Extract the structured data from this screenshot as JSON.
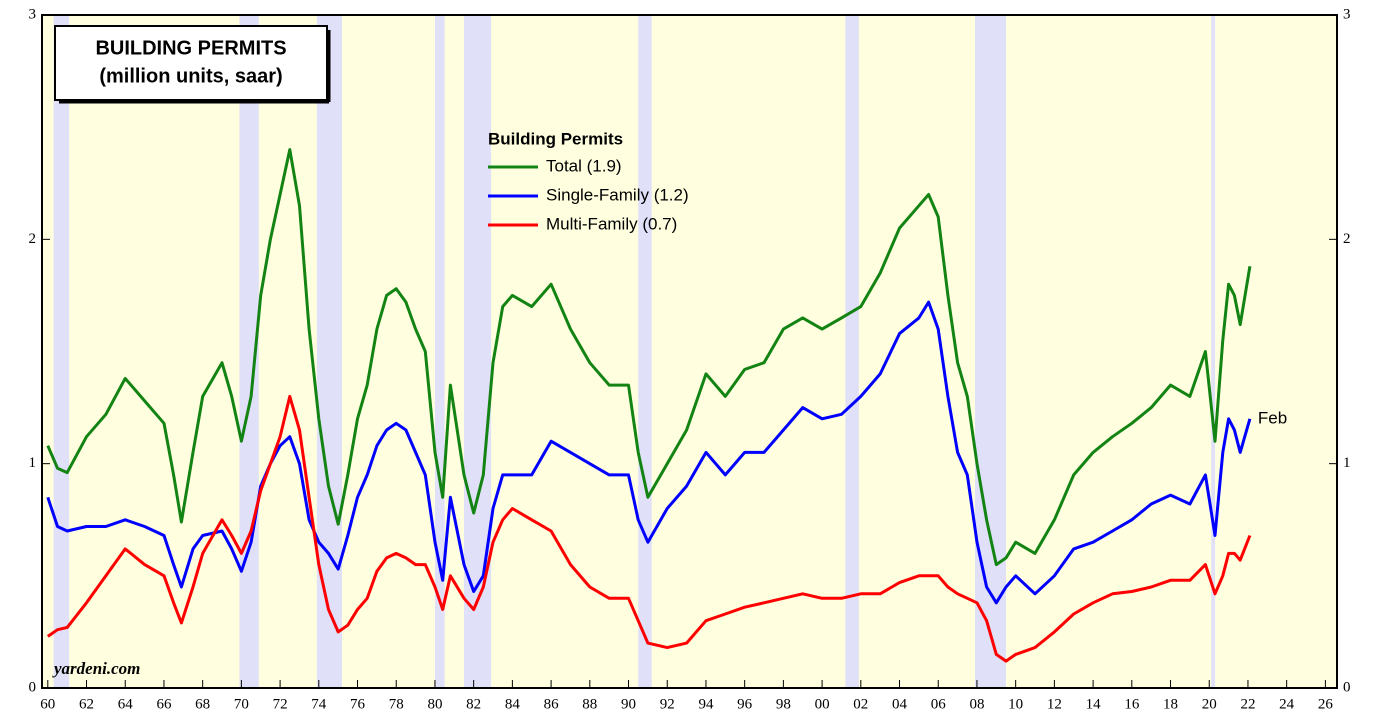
{
  "chart_data": {
    "type": "line",
    "title": "BUILDING PERMITS",
    "subtitle": "(million units, saar)",
    "legend_title": "Building Permits",
    "source": "yardeni.com",
    "end_label": "Feb",
    "x": [
      1960,
      1960.5,
      1961,
      1962,
      1963,
      1964,
      1965,
      1966,
      1966.5,
      1966.9,
      1967.5,
      1968,
      1969,
      1969.5,
      1970,
      1970.5,
      1971,
      1971.5,
      1972,
      1972.5,
      1973,
      1973.5,
      1974,
      1974.5,
      1975,
      1975.5,
      1976,
      1976.5,
      1977,
      1977.5,
      1978,
      1978.5,
      1979,
      1979.5,
      1980,
      1980.4,
      1980.8,
      1981.5,
      1982,
      1982.5,
      1983,
      1983.5,
      1984,
      1985,
      1986,
      1987,
      1988,
      1989,
      1990,
      1990.5,
      1991,
      1992,
      1993,
      1994,
      1995,
      1996,
      1997,
      1998,
      1999,
      2000,
      2001,
      2002,
      2003,
      2004,
      2005,
      2005.5,
      2006,
      2006.5,
      2007,
      2007.5,
      2008,
      2008.5,
      2009,
      2009.5,
      2010,
      2011,
      2012,
      2013,
      2014,
      2015,
      2016,
      2017,
      2018,
      2019,
      2019.8,
      2020.3,
      2020.7,
      2021,
      2021.3,
      2021.6,
      2022.1
    ],
    "series": [
      {
        "name": "Total (1.9)",
        "color": "#138413",
        "values": [
          1.08,
          0.98,
          0.96,
          1.12,
          1.22,
          1.38,
          1.28,
          1.18,
          0.95,
          0.74,
          1.05,
          1.3,
          1.45,
          1.3,
          1.1,
          1.3,
          1.75,
          2.0,
          2.2,
          2.4,
          2.15,
          1.6,
          1.2,
          0.9,
          0.73,
          0.95,
          1.2,
          1.35,
          1.6,
          1.75,
          1.78,
          1.72,
          1.6,
          1.5,
          1.05,
          0.85,
          1.35,
          0.95,
          0.78,
          0.95,
          1.45,
          1.7,
          1.75,
          1.7,
          1.8,
          1.6,
          1.45,
          1.35,
          1.35,
          1.05,
          0.85,
          1.0,
          1.15,
          1.4,
          1.3,
          1.42,
          1.45,
          1.6,
          1.65,
          1.6,
          1.65,
          1.7,
          1.85,
          2.05,
          2.15,
          2.2,
          2.1,
          1.75,
          1.45,
          1.3,
          1.0,
          0.75,
          0.55,
          0.58,
          0.65,
          0.6,
          0.75,
          0.95,
          1.05,
          1.12,
          1.18,
          1.25,
          1.35,
          1.3,
          1.5,
          1.1,
          1.55,
          1.8,
          1.75,
          1.62,
          1.88
        ]
      },
      {
        "name": "Single-Family (1.2)",
        "color": "#0000ff",
        "values": [
          0.85,
          0.72,
          0.7,
          0.72,
          0.72,
          0.75,
          0.72,
          0.68,
          0.55,
          0.45,
          0.62,
          0.68,
          0.7,
          0.62,
          0.52,
          0.65,
          0.9,
          1.0,
          1.08,
          1.12,
          1.0,
          0.75,
          0.65,
          0.6,
          0.53,
          0.68,
          0.85,
          0.95,
          1.08,
          1.15,
          1.18,
          1.15,
          1.05,
          0.95,
          0.65,
          0.48,
          0.85,
          0.55,
          0.43,
          0.5,
          0.8,
          0.95,
          0.95,
          0.95,
          1.1,
          1.05,
          1.0,
          0.95,
          0.95,
          0.75,
          0.65,
          0.8,
          0.9,
          1.05,
          0.95,
          1.05,
          1.05,
          1.15,
          1.25,
          1.2,
          1.22,
          1.3,
          1.4,
          1.58,
          1.65,
          1.72,
          1.6,
          1.3,
          1.05,
          0.95,
          0.65,
          0.45,
          0.38,
          0.45,
          0.5,
          0.42,
          0.5,
          0.62,
          0.65,
          0.7,
          0.75,
          0.82,
          0.86,
          0.82,
          0.95,
          0.68,
          1.05,
          1.2,
          1.15,
          1.05,
          1.2
        ]
      },
      {
        "name": "Multi-Family (0.7)",
        "color": "#ff0000",
        "values": [
          0.23,
          0.26,
          0.27,
          0.38,
          0.5,
          0.62,
          0.55,
          0.5,
          0.38,
          0.29,
          0.45,
          0.6,
          0.75,
          0.68,
          0.6,
          0.7,
          0.88,
          1.0,
          1.12,
          1.3,
          1.15,
          0.85,
          0.55,
          0.35,
          0.25,
          0.28,
          0.35,
          0.4,
          0.52,
          0.58,
          0.6,
          0.58,
          0.55,
          0.55,
          0.45,
          0.35,
          0.5,
          0.4,
          0.35,
          0.45,
          0.65,
          0.75,
          0.8,
          0.75,
          0.7,
          0.55,
          0.45,
          0.4,
          0.4,
          0.3,
          0.2,
          0.18,
          0.2,
          0.3,
          0.33,
          0.36,
          0.38,
          0.4,
          0.42,
          0.4,
          0.4,
          0.42,
          0.42,
          0.47,
          0.5,
          0.5,
          0.5,
          0.45,
          0.42,
          0.4,
          0.38,
          0.3,
          0.15,
          0.12,
          0.15,
          0.18,
          0.25,
          0.33,
          0.38,
          0.42,
          0.43,
          0.45,
          0.48,
          0.48,
          0.55,
          0.42,
          0.5,
          0.6,
          0.6,
          0.57,
          0.68
        ]
      }
    ],
    "recessions": [
      [
        1960.3,
        1961.1
      ],
      [
        1969.9,
        1970.9
      ],
      [
        1973.9,
        1975.2
      ],
      [
        1980.0,
        1980.5
      ],
      [
        1981.5,
        1982.9
      ],
      [
        1990.5,
        1991.2
      ],
      [
        2001.2,
        2001.9
      ],
      [
        2007.9,
        2009.5
      ],
      [
        2020.1,
        2020.3
      ]
    ],
    "xlim": [
      1959.7,
      2026.6
    ],
    "ylim": [
      0,
      3
    ],
    "yticks": [
      0,
      1,
      2,
      3
    ],
    "xticks": [
      {
        "value": 1960,
        "label": "60"
      },
      {
        "value": 1962,
        "label": "62"
      },
      {
        "value": 1964,
        "label": "64"
      },
      {
        "value": 1966,
        "label": "66"
      },
      {
        "value": 1968,
        "label": "68"
      },
      {
        "value": 1970,
        "label": "70"
      },
      {
        "value": 1972,
        "label": "72"
      },
      {
        "value": 1974,
        "label": "74"
      },
      {
        "value": 1976,
        "label": "76"
      },
      {
        "value": 1978,
        "label": "78"
      },
      {
        "value": 1980,
        "label": "80"
      },
      {
        "value": 1982,
        "label": "82"
      },
      {
        "value": 1984,
        "label": "84"
      },
      {
        "value": 1986,
        "label": "86"
      },
      {
        "value": 1988,
        "label": "88"
      },
      {
        "value": 1990,
        "label": "90"
      },
      {
        "value": 1992,
        "label": "92"
      },
      {
        "value": 1994,
        "label": "94"
      },
      {
        "value": 1996,
        "label": "96"
      },
      {
        "value": 1998,
        "label": "98"
      },
      {
        "value": 2000,
        "label": "00"
      },
      {
        "value": 2002,
        "label": "02"
      },
      {
        "value": 2004,
        "label": "04"
      },
      {
        "value": 2006,
        "label": "06"
      },
      {
        "value": 2008,
        "label": "08"
      },
      {
        "value": 2010,
        "label": "10"
      },
      {
        "value": 2012,
        "label": "12"
      },
      {
        "value": 2014,
        "label": "14"
      },
      {
        "value": 2016,
        "label": "16"
      },
      {
        "value": 2018,
        "label": "18"
      },
      {
        "value": 2020,
        "label": "20"
      },
      {
        "value": 2022,
        "label": "22"
      },
      {
        "value": 2024,
        "label": "24"
      },
      {
        "value": 2026,
        "label": "26"
      }
    ],
    "background": "#ffffe0",
    "recession_color": "#e0e0f8"
  }
}
